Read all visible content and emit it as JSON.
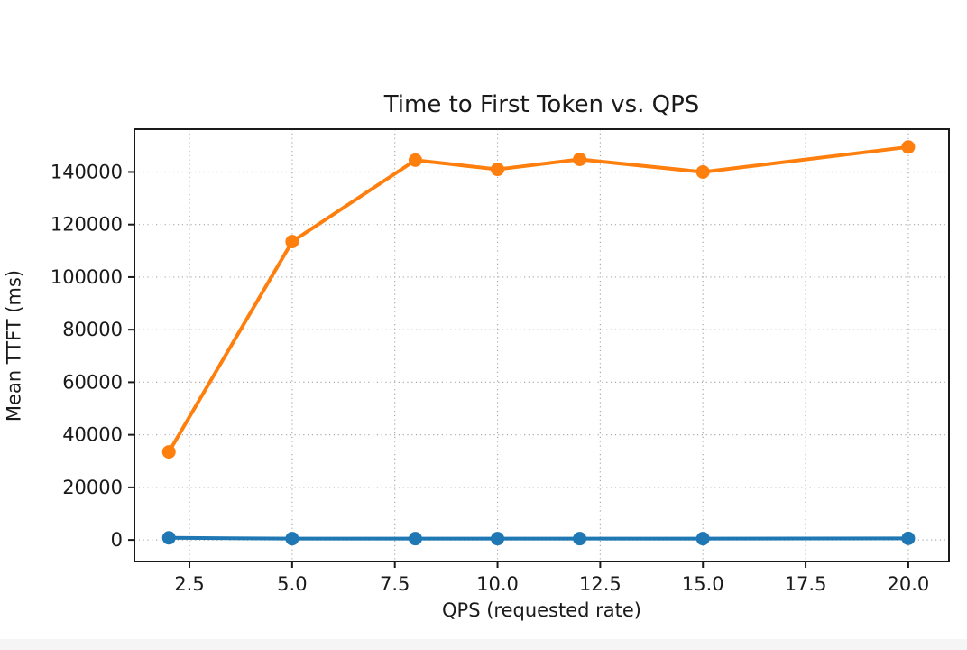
{
  "page": {
    "background": "#ffffff",
    "bottom_bar_color": "#f5f5f6"
  },
  "chart_data": {
    "type": "line",
    "title": "Time to First Token vs. QPS",
    "xlabel": "QPS (requested rate)",
    "ylabel": "Mean TTFT (ms)",
    "x": [
      2,
      5,
      8,
      10,
      12,
      15,
      20
    ],
    "series": [
      {
        "name": "blue",
        "color": "#1f77b4",
        "values": [
          800,
          500,
          500,
          500,
          500,
          500,
          600
        ]
      },
      {
        "name": "orange",
        "color": "#ff7f0e",
        "values": [
          33500,
          113500,
          144500,
          141000,
          144800,
          140000,
          149500
        ]
      }
    ],
    "xlim": [
      1.16,
      20.99
    ],
    "ylim": [
      -8200,
      156300
    ],
    "xticks": [
      2.5,
      5.0,
      7.5,
      10.0,
      12.5,
      15.0,
      17.5,
      20.0
    ],
    "xtick_labels": [
      "2.5",
      "5.0",
      "7.5",
      "10.0",
      "12.5",
      "15.0",
      "17.5",
      "20.0"
    ],
    "yticks": [
      0,
      20000,
      40000,
      60000,
      80000,
      100000,
      120000,
      140000
    ],
    "ytick_labels": [
      "0",
      "20000",
      "40000",
      "60000",
      "80000",
      "100000",
      "120000",
      "140000"
    ],
    "grid": true,
    "grid_style": "dotted",
    "legend": "none",
    "marker": "circle",
    "axis_color": "#1a1a1a",
    "grid_color": "#aaaaaa"
  }
}
